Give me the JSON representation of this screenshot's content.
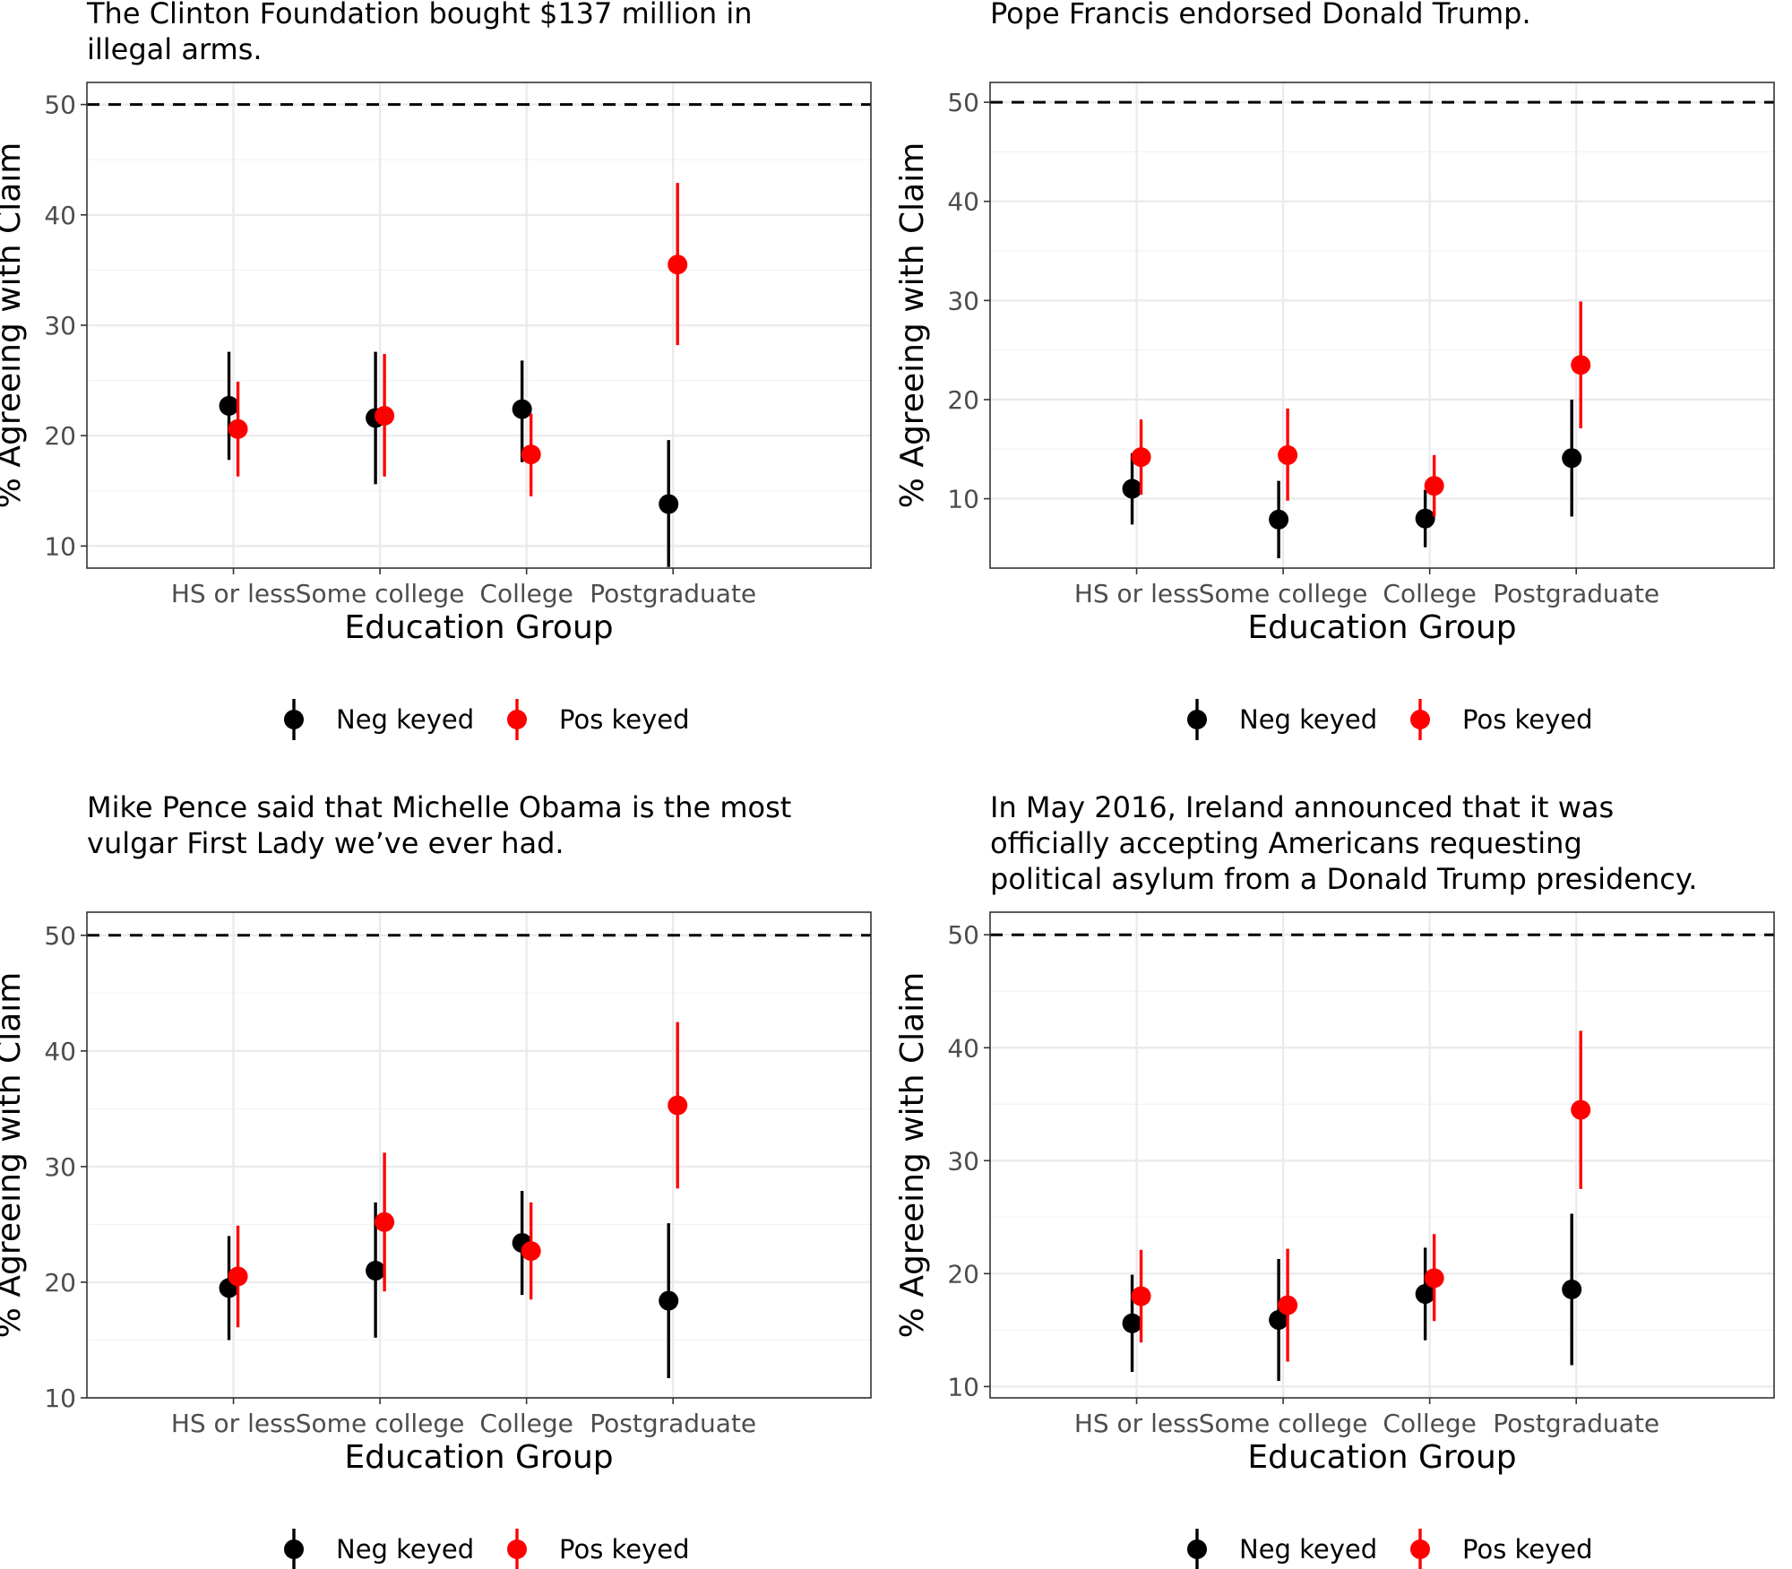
{
  "colors": {
    "neg": "#000000",
    "pos": "#ff0000"
  },
  "chart_data": [
    {
      "type": "scatter",
      "title": "The Clinton Foundation bought $137 million in illegal arms.",
      "title_lines": [
        "The Clinton Foundation bought $137 million in",
        "illegal arms."
      ],
      "categories": [
        "HS or less",
        "Some college",
        "College",
        "Postgraduate"
      ],
      "xlabel": "Education Group",
      "ylabel": "% Agreeing with Claim",
      "ylim": [
        8,
        52
      ],
      "yticks": [
        10,
        20,
        30,
        40,
        50
      ],
      "reference_line": 50,
      "legend": {
        "position": "bottom",
        "labels": [
          "Neg keyed",
          "Pos keyed"
        ]
      },
      "series": [
        {
          "name": "Neg keyed",
          "color": "#000000",
          "values": [
            22.7,
            21.6,
            22.4,
            13.8
          ],
          "lower": [
            17.8,
            15.6,
            17.6,
            8.1
          ],
          "upper": [
            27.6,
            27.6,
            26.8,
            19.6
          ]
        },
        {
          "name": "Pos keyed",
          "color": "#ff0000",
          "values": [
            20.6,
            21.8,
            18.3,
            35.5
          ],
          "lower": [
            16.3,
            16.3,
            14.5,
            28.2
          ],
          "upper": [
            24.9,
            27.4,
            22.0,
            42.9
          ]
        }
      ]
    },
    {
      "type": "scatter",
      "title": "Pope Francis endorsed Donald Trump.",
      "title_lines": [
        "Pope Francis endorsed Donald Trump."
      ],
      "categories": [
        "HS or less",
        "Some college",
        "College",
        "Postgraduate"
      ],
      "xlabel": "Education Group",
      "ylabel": "% Agreeing with Claim",
      "ylim": [
        3,
        52
      ],
      "yticks": [
        10,
        20,
        30,
        40,
        50
      ],
      "reference_line": 50,
      "legend": {
        "position": "bottom",
        "labels": [
          "Neg keyed",
          "Pos keyed"
        ]
      },
      "series": [
        {
          "name": "Neg keyed",
          "color": "#000000",
          "values": [
            11.0,
            7.9,
            8.0,
            14.1
          ],
          "lower": [
            7.4,
            4.0,
            5.1,
            8.2
          ],
          "upper": [
            14.6,
            11.8,
            10.9,
            20.0
          ]
        },
        {
          "name": "Pos keyed",
          "color": "#ff0000",
          "values": [
            14.2,
            14.4,
            11.3,
            23.5
          ],
          "lower": [
            10.4,
            9.8,
            8.2,
            17.1
          ],
          "upper": [
            18.0,
            19.1,
            14.4,
            29.9
          ]
        }
      ]
    },
    {
      "type": "scatter",
      "title": "Mike Pence said that Michelle Obama is the most vulgar First Lady we’ve ever had.",
      "title_lines": [
        "Mike Pence said that Michelle Obama is the most",
        "vulgar First Lady we’ve ever had."
      ],
      "categories": [
        "HS or less",
        "Some college",
        "College",
        "Postgraduate"
      ],
      "xlabel": "Education Group",
      "ylabel": "% Agreeing with Claim",
      "ylim": [
        10,
        52
      ],
      "yticks": [
        10,
        20,
        30,
        40,
        50
      ],
      "reference_line": 50,
      "legend": {
        "position": "bottom",
        "labels": [
          "Neg keyed",
          "Pos keyed"
        ]
      },
      "series": [
        {
          "name": "Neg keyed",
          "color": "#000000",
          "values": [
            19.5,
            21.0,
            23.4,
            18.4
          ],
          "lower": [
            15.0,
            15.2,
            18.9,
            11.7
          ],
          "upper": [
            24.0,
            26.9,
            27.9,
            25.1
          ]
        },
        {
          "name": "Pos keyed",
          "color": "#ff0000",
          "values": [
            20.5,
            25.2,
            22.7,
            35.3
          ],
          "lower": [
            16.1,
            19.2,
            18.5,
            28.1
          ],
          "upper": [
            24.9,
            31.2,
            26.9,
            42.5
          ]
        }
      ]
    },
    {
      "type": "scatter",
      "title": "In May 2016, Ireland announced that it was officially accepting Americans requesting political asylum from a Donald Trump presidency.",
      "title_lines": [
        "In May 2016, Ireland announced that it was",
        "officially accepting Americans requesting",
        "political asylum from a Donald Trump presidency."
      ],
      "categories": [
        "HS or less",
        "Some college",
        "College",
        "Postgraduate"
      ],
      "xlabel": "Education Group",
      "ylabel": "% Agreeing with Claim",
      "ylim": [
        9,
        52
      ],
      "yticks": [
        10,
        20,
        30,
        40,
        50
      ],
      "reference_line": 50,
      "legend": {
        "position": "bottom",
        "labels": [
          "Neg keyed",
          "Pos keyed"
        ]
      },
      "series": [
        {
          "name": "Neg keyed",
          "color": "#000000",
          "values": [
            15.6,
            15.9,
            18.2,
            18.6
          ],
          "lower": [
            11.3,
            10.5,
            14.1,
            11.9
          ],
          "upper": [
            19.9,
            21.3,
            22.3,
            25.3
          ]
        },
        {
          "name": "Pos keyed",
          "color": "#ff0000",
          "values": [
            18.0,
            17.2,
            19.6,
            34.5
          ],
          "lower": [
            13.9,
            12.2,
            15.8,
            27.5
          ],
          "upper": [
            22.1,
            22.2,
            23.5,
            41.5
          ]
        }
      ]
    }
  ]
}
